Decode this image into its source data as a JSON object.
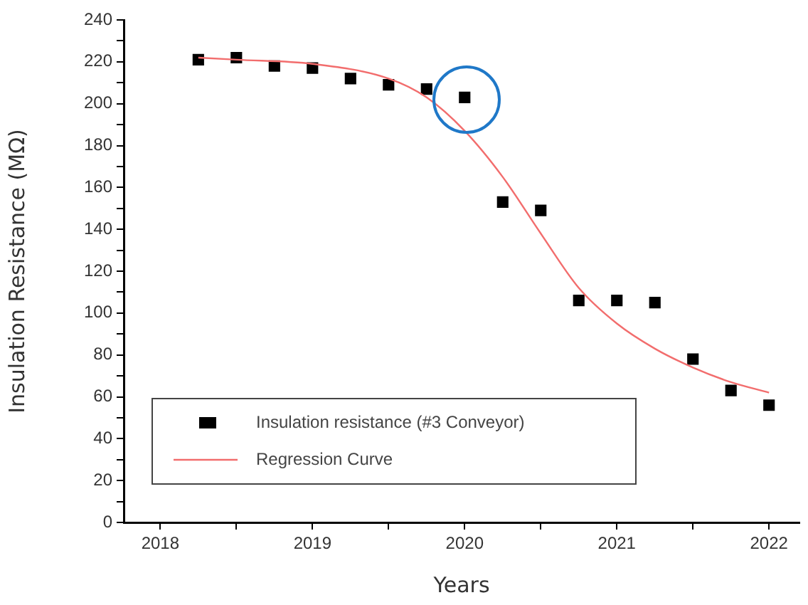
{
  "chart_data": {
    "type": "scatter",
    "xlabel": "Years",
    "ylabel": "Insulation Resistance (MΩ)",
    "xlim": [
      2017.76,
      2022.2
    ],
    "xticks": [
      2018,
      {
        "value": 2018.5,
        "label": null
      },
      2019,
      {
        "value": 2019.5,
        "label": null
      },
      2020,
      {
        "value": 2020.5,
        "label": null
      },
      2021,
      {
        "value": 2021.5,
        "label": null
      },
      2022
    ],
    "ylim": [
      0,
      240
    ],
    "yticks": [
      0,
      {
        "value": 10,
        "label": null
      },
      20,
      {
        "value": 30,
        "label": null
      },
      40,
      {
        "value": 50,
        "label": null
      },
      60,
      {
        "value": 70,
        "label": null
      },
      80,
      {
        "value": 90,
        "label": null
      },
      100,
      {
        "value": 110,
        "label": null
      },
      120,
      {
        "value": 130,
        "label": null
      },
      140,
      {
        "value": 150,
        "label": null
      },
      160,
      {
        "value": 170,
        "label": null
      },
      180,
      {
        "value": 190,
        "label": null
      },
      200,
      {
        "value": 210,
        "label": null
      },
      220,
      {
        "value": 230,
        "label": null
      },
      240
    ],
    "grid": false,
    "legend": "bottom left",
    "series": [
      {
        "name": "Insulation resistance (#3 Conveyor)",
        "marker": "square",
        "color": "#000000",
        "x": [
          2018.25,
          2018.5,
          2018.75,
          2019,
          2019.25,
          2019.5,
          2019.75,
          2020,
          2020.25,
          2020.5,
          2020.75,
          2021,
          2021.25,
          2021.5,
          2021.75,
          2022
        ],
        "values": [
          221,
          222,
          218,
          217,
          212,
          209,
          207,
          203,
          153,
          149,
          106,
          106,
          105,
          78,
          63,
          56
        ]
      },
      {
        "name": "Regression Curve",
        "type": "line",
        "marker": "none",
        "color": "#f26d6d",
        "x": [
          2018.25,
          2018.5,
          2019,
          2019.5,
          2019.75,
          2020,
          2020.25,
          2020.5,
          2020.75,
          2021,
          2021.25,
          2021.5,
          2021.75,
          2022
        ],
        "values": [
          222,
          221,
          219,
          212,
          203,
          187,
          165,
          138,
          112,
          95,
          83,
          74,
          67,
          62
        ]
      }
    ]
  }
}
